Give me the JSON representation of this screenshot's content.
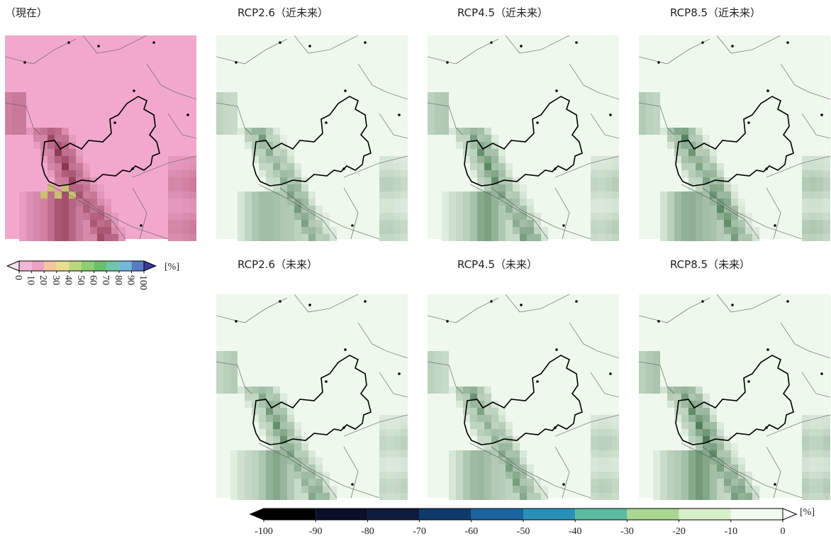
{
  "panels": [
    {
      "title": "（現在）",
      "background": "#f2a8cc"
    },
    {
      "title": "RCP2.6（近未来）",
      "background": "#eef8ec"
    },
    {
      "title": "RCP4.5（近未来）",
      "background": "#eef8ec"
    },
    {
      "title": "RCP8.5（近未来）",
      "background": "#eef8ec"
    },
    {
      "title": "RCP2.6（未来）",
      "background": "#eef8ec"
    },
    {
      "title": "RCP4.5（未来）",
      "background": "#eef8ec"
    },
    {
      "title": "RCP8.5（未来）",
      "background": "#eef8ec"
    }
  ],
  "colorbar_current": {
    "colors": [
      "#f8e0ec",
      "#f4b6d6",
      "#eca2c2",
      "#f3c6a0",
      "#e6df8c",
      "#bad87c",
      "#8ecf72",
      "#6abf6a",
      "#6ec6aa",
      "#72b8da",
      "#5a7cc8",
      "#3a3a9a"
    ],
    "ticks": [
      0,
      10,
      20,
      30,
      40,
      50,
      60,
      70,
      80,
      90,
      100
    ],
    "unit": "[%]"
  },
  "colorbar_change": {
    "colors": [
      "#000000",
      "#000000",
      "#0a0f2a",
      "#0f1a40",
      "#0c3a6a",
      "#1a64a0",
      "#2a90b8",
      "#5abca0",
      "#a8d890",
      "#d8f0c8",
      "#f2faf0",
      "#ffffff"
    ],
    "ticks": [
      -100,
      -90,
      -80,
      -70,
      -60,
      -50,
      -40,
      -30,
      -20,
      -10,
      0
    ],
    "unit": "[%]"
  }
}
